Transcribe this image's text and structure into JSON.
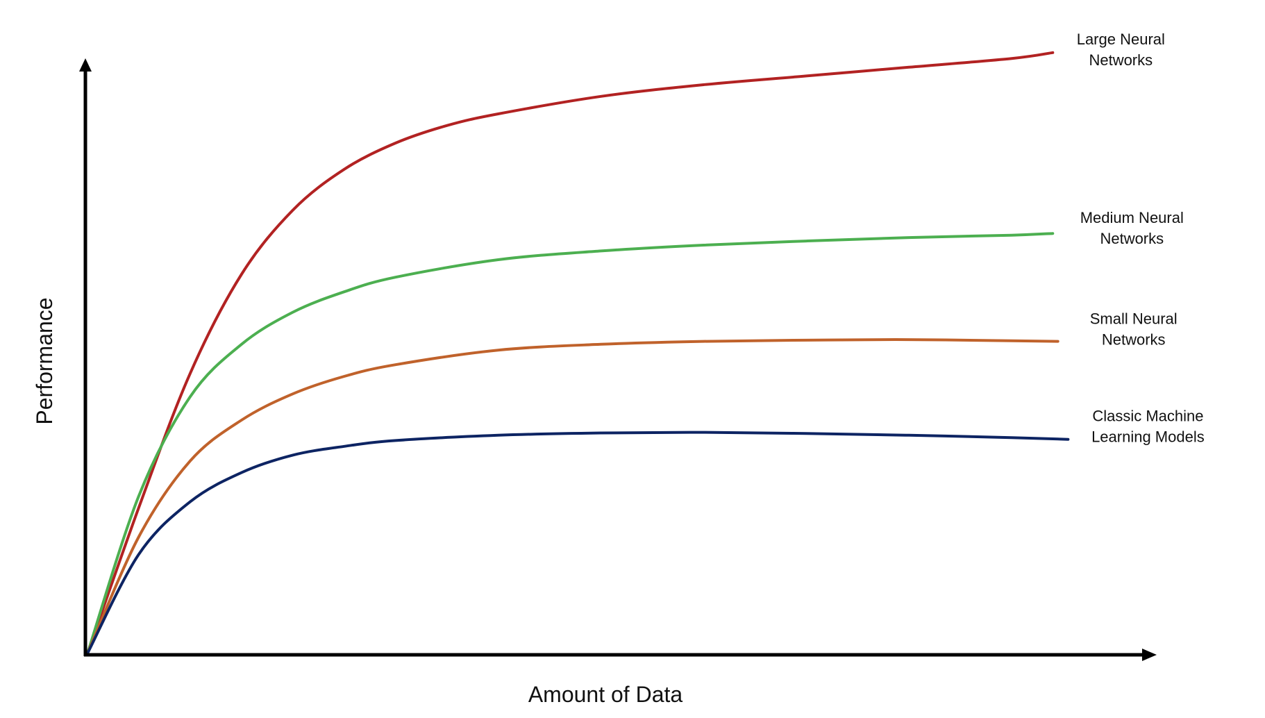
{
  "chart_data": {
    "type": "line",
    "xlabel": "Amount of Data",
    "ylabel": "Performance",
    "xlim": [
      0,
      1
    ],
    "ylim": [
      0,
      1
    ],
    "grid": false,
    "legend": "inline labels at right end of each curve",
    "series": [
      {
        "name": "Large Neural Networks",
        "label_lines": [
          "Large Neural",
          "Networks"
        ],
        "color": "#B22222",
        "x": [
          0,
          0.05,
          0.1,
          0.15,
          0.2,
          0.25,
          0.3,
          0.35,
          0.4,
          0.5,
          0.6,
          0.7,
          0.8,
          0.9,
          0.94
        ],
        "y": [
          0,
          0.25,
          0.48,
          0.65,
          0.76,
          0.83,
          0.875,
          0.905,
          0.925,
          0.955,
          0.975,
          0.99,
          1.005,
          1.02,
          1.03
        ]
      },
      {
        "name": "Medium Neural Networks",
        "label_lines": [
          "Medium Neural",
          "Networks"
        ],
        "color": "#4CAF50",
        "x": [
          0,
          0.05,
          0.1,
          0.15,
          0.2,
          0.25,
          0.3,
          0.4,
          0.5,
          0.6,
          0.7,
          0.8,
          0.9,
          0.94
        ],
        "y": [
          0,
          0.27,
          0.44,
          0.53,
          0.585,
          0.62,
          0.645,
          0.675,
          0.69,
          0.7,
          0.707,
          0.713,
          0.717,
          0.72
        ]
      },
      {
        "name": "Small Neural Networks",
        "label_lines": [
          "Small Neural",
          "Networks"
        ],
        "color": "#C0622B",
        "x": [
          0,
          0.05,
          0.1,
          0.15,
          0.2,
          0.25,
          0.3,
          0.4,
          0.5,
          0.6,
          0.7,
          0.8,
          0.9,
          0.945
        ],
        "y": [
          0,
          0.2,
          0.33,
          0.4,
          0.445,
          0.475,
          0.495,
          0.52,
          0.53,
          0.535,
          0.537,
          0.538,
          0.536,
          0.535
        ]
      },
      {
        "name": "Classic Machine Learning Models",
        "label_lines": [
          "Classic Machine",
          "Learning Models"
        ],
        "color": "#0D2463",
        "x": [
          0,
          0.05,
          0.1,
          0.15,
          0.2,
          0.25,
          0.3,
          0.4,
          0.5,
          0.6,
          0.7,
          0.8,
          0.9,
          0.955
        ],
        "y": [
          0,
          0.17,
          0.26,
          0.31,
          0.34,
          0.355,
          0.365,
          0.374,
          0.378,
          0.379,
          0.377,
          0.374,
          0.37,
          0.367
        ]
      }
    ]
  }
}
